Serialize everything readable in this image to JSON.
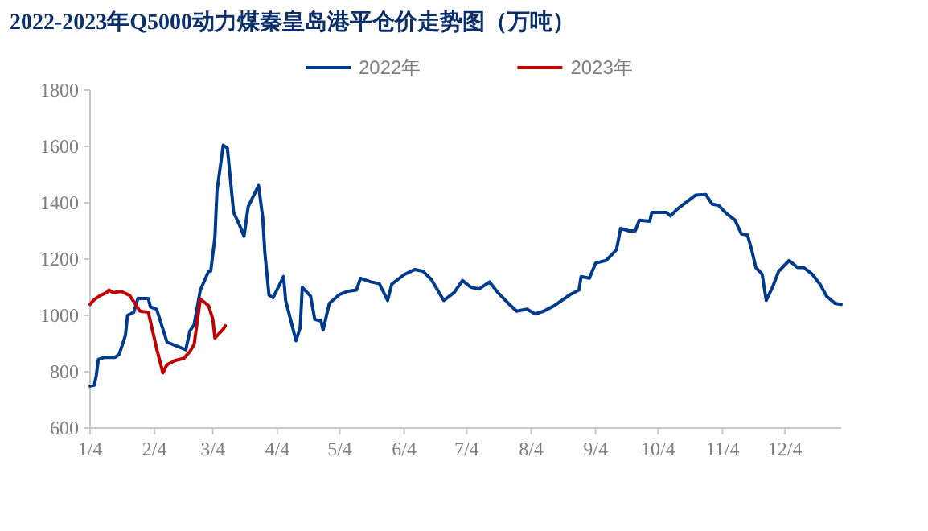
{
  "chart_data": {
    "type": "line",
    "title": "2022-2023年Q5000动力煤秦皇岛港平仓价走势图（万吨）",
    "legend": "top",
    "grid": false,
    "marker": "none",
    "line_style": "solid",
    "xlim": [
      "--01-04",
      "--12-31"
    ],
    "xticks": [
      {
        "value": "--01-04",
        "label": "1/4"
      },
      {
        "value": "--02-04",
        "label": "2/4"
      },
      {
        "value": "--03-04",
        "label": "3/4"
      },
      {
        "value": "--04-04",
        "label": "4/4"
      },
      {
        "value": "--05-04",
        "label": "5/4"
      },
      {
        "value": "--06-04",
        "label": "6/4"
      },
      {
        "value": "--07-04",
        "label": "7/4"
      },
      {
        "value": "--08-04",
        "label": "8/4"
      },
      {
        "value": "--09-04",
        "label": "9/4"
      },
      {
        "value": "--10-04",
        "label": "10/4"
      },
      {
        "value": "--11-04",
        "label": "11/4"
      },
      {
        "value": "--12-04",
        "label": "12/4"
      }
    ],
    "ylim": [
      600,
      1800
    ],
    "yticks": [
      600,
      800,
      1000,
      1200,
      1400,
      1600,
      1800
    ],
    "series": [
      {
        "name": "2022年",
        "color": "#003a8c",
        "x": [
          "--01-04",
          "--01-06",
          "--01-07",
          "--01-08",
          "--01-11",
          "--01-16",
          "--01-18",
          "--01-21",
          "--01-22",
          "--01-25",
          "--01-27",
          "--02-01",
          "--02-02",
          "--02-05",
          "--02-10",
          "--02-19",
          "--02-21",
          "--02-23",
          "--02-26",
          "--03-02",
          "--03-03",
          "--03-05",
          "--03-06",
          "--03-09",
          "--03-11",
          "--03-14",
          "--03-17",
          "--03-19",
          "--03-21",
          "--03-26",
          "--03-28",
          "--03-29",
          "--03-31",
          "--04-02",
          "--04-07",
          "--04-08",
          "--04-13",
          "--04-15",
          "--04-16",
          "--04-20",
          "--04-22",
          "--04-25",
          "--04-26",
          "--04-29",
          "--05-04",
          "--05-08",
          "--05-12",
          "--05-14",
          "--05-19",
          "--05-23",
          "--05-27",
          "--05-29",
          "--06-04",
          "--06-09",
          "--06-13",
          "--06-17",
          "--06-23",
          "--06-28",
          "--07-02",
          "--07-06",
          "--07-10",
          "--07-15",
          "--07-19",
          "--07-24",
          "--07-28",
          "--08-02",
          "--08-06",
          "--08-10",
          "--08-15",
          "--08-23",
          "--08-27",
          "--08-28",
          "--09-01",
          "--09-04",
          "--09-09",
          "--09-14",
          "--09-16",
          "--09-20",
          "--09-23",
          "--09-25",
          "--09-30",
          "--10-01",
          "--10-08",
          "--10-10",
          "--10-13",
          "--10-17",
          "--10-22",
          "--10-27",
          "--10-30",
          "--11-02",
          "--11-06",
          "--11-10",
          "--11-13",
          "--11-16",
          "--11-18",
          "--11-20",
          "--11-23",
          "--11-25",
          "--11-28",
          "--12-01",
          "--12-06",
          "--12-10",
          "--12-13",
          "--12-17",
          "--12-21",
          "--12-24",
          "--12-28",
          "--12-31"
        ],
        "values": [
          749,
          752,
          787,
          844,
          851,
          851,
          862,
          929,
          1000,
          1011,
          1060,
          1060,
          1030,
          1022,
          905,
          878,
          945,
          967,
          1090,
          1157,
          1157,
          1277,
          1442,
          1604,
          1594,
          1366,
          1318,
          1281,
          1386,
          1461,
          1347,
          1224,
          1072,
          1063,
          1138,
          1053,
          910,
          957,
          1100,
          1068,
          986,
          980,
          948,
          1043,
          1075,
          1086,
          1090,
          1132,
          1119,
          1113,
          1053,
          1111,
          1145,
          1163,
          1157,
          1128,
          1053,
          1081,
          1124,
          1100,
          1094,
          1119,
          1081,
          1043,
          1015,
          1022,
          1005,
          1015,
          1034,
          1075,
          1090,
          1138,
          1132,
          1186,
          1195,
          1233,
          1309,
          1300,
          1300,
          1338,
          1334,
          1366,
          1366,
          1353,
          1376,
          1399,
          1427,
          1429,
          1395,
          1391,
          1361,
          1338,
          1290,
          1285,
          1233,
          1170,
          1147,
          1053,
          1100,
          1157,
          1195,
          1170,
          1170,
          1147,
          1109,
          1068,
          1043,
          1039
        ]
      },
      {
        "name": "2023年",
        "color": "#c00000",
        "x": [
          "--01-04",
          "--01-06",
          "--01-09",
          "--01-12",
          "--01-13",
          "--01-15",
          "--01-19",
          "--01-23",
          "--01-25",
          "--01-28",
          "--02-01",
          "--02-05",
          "--02-08",
          "--02-10",
          "--02-14",
          "--02-18",
          "--02-21",
          "--02-23",
          "--02-26",
          "--03-02",
          "--03-04",
          "--03-05",
          "--03-09",
          "--03-10"
        ],
        "values": [
          1039,
          1056,
          1071,
          1081,
          1090,
          1081,
          1085,
          1071,
          1049,
          1015,
          1011,
          882,
          796,
          825,
          840,
          847,
          872,
          896,
          1058,
          1034,
          986,
          920,
          951,
          963
        ]
      }
    ]
  }
}
